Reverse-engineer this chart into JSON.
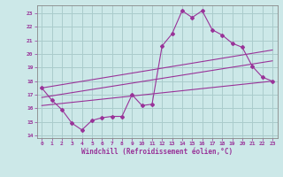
{
  "xlabel": "Windchill (Refroidissement éolien,°C)",
  "bg_color": "#cce8e8",
  "grid_color": "#aacccc",
  "line_color": "#993399",
  "xlim": [
    -0.5,
    23.5
  ],
  "ylim": [
    13.8,
    23.6
  ],
  "xticks": [
    0,
    1,
    2,
    3,
    4,
    5,
    6,
    7,
    8,
    9,
    10,
    11,
    12,
    13,
    14,
    15,
    16,
    17,
    18,
    19,
    20,
    21,
    22,
    23
  ],
  "yticks": [
    14,
    15,
    16,
    17,
    18,
    19,
    20,
    21,
    22,
    23
  ],
  "line1_x": [
    0,
    1,
    2,
    3,
    4,
    5,
    6,
    7,
    8,
    9,
    10,
    11,
    12,
    13,
    14,
    15,
    16,
    17,
    18,
    19,
    20,
    21,
    22,
    23
  ],
  "line1_y": [
    17.5,
    16.6,
    15.9,
    14.9,
    14.4,
    15.1,
    15.3,
    15.4,
    15.4,
    17.0,
    16.2,
    16.3,
    20.6,
    21.5,
    23.2,
    22.7,
    23.2,
    21.8,
    21.4,
    20.8,
    20.5,
    19.1,
    18.3,
    18.0
  ],
  "line2_x": [
    0,
    23
  ],
  "line2_y": [
    17.5,
    20.3
  ],
  "line3_x": [
    0,
    23
  ],
  "line3_y": [
    16.8,
    19.5
  ],
  "line4_x": [
    0,
    23
  ],
  "line4_y": [
    16.2,
    18.0
  ]
}
